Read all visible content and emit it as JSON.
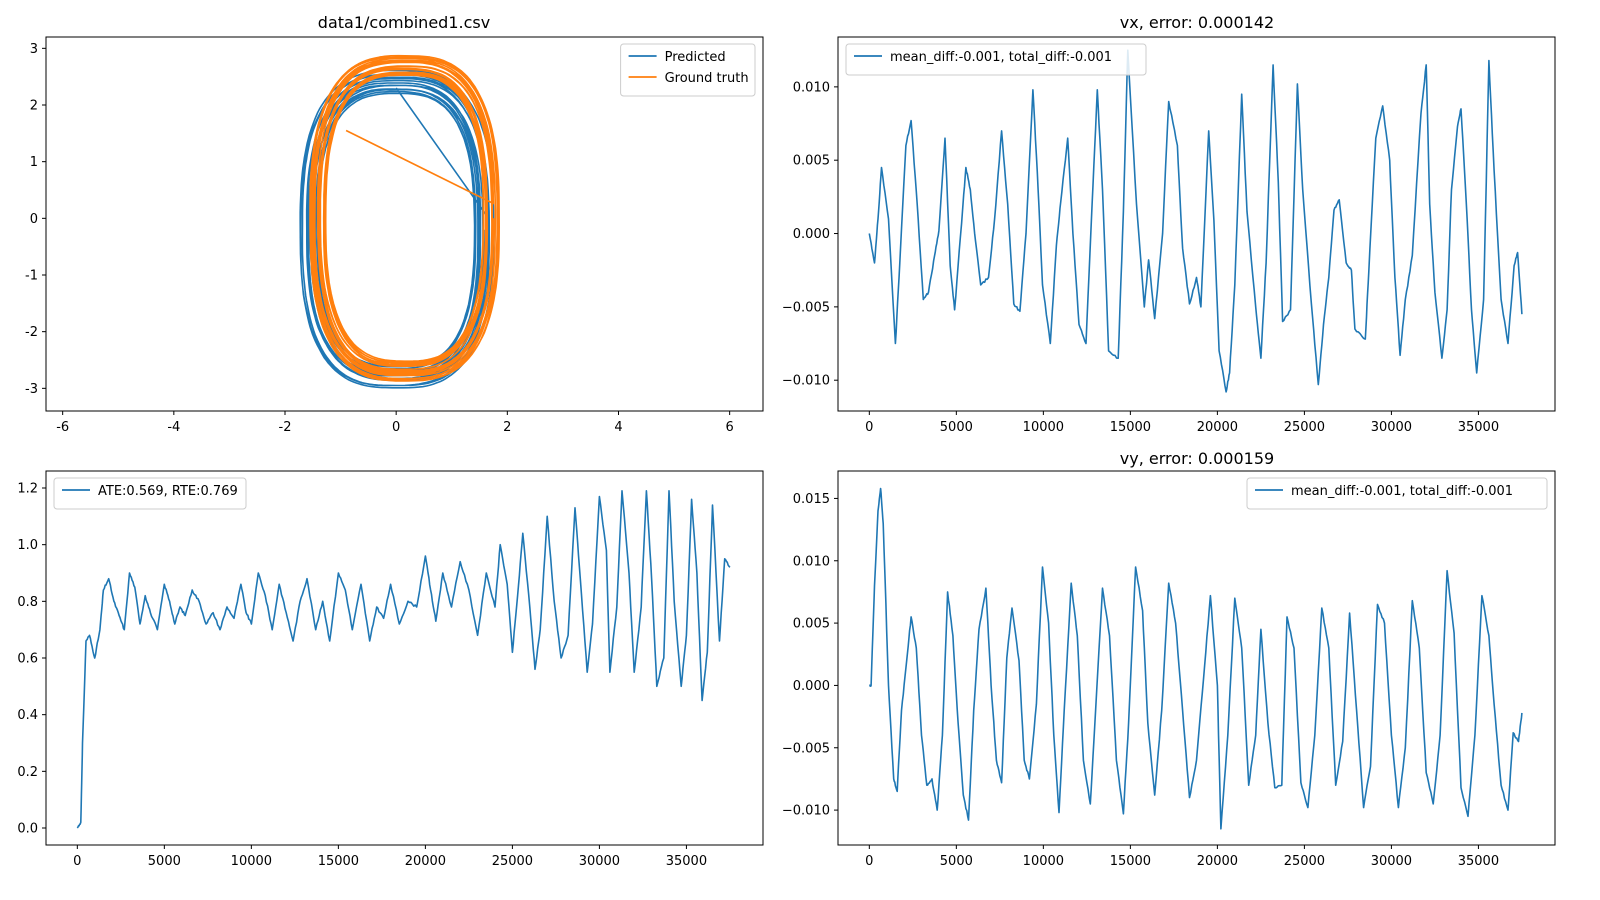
{
  "figure": {
    "background": "#ffffff"
  },
  "chart_data": [
    {
      "id": "traj",
      "type": "line",
      "title": "data1/combined1.csv",
      "xlim": [
        -6.3,
        6.6
      ],
      "ylim": [
        -3.4,
        3.2
      ],
      "xticks": [
        -6,
        -4,
        -2,
        0,
        2,
        4,
        6
      ],
      "yticks": [
        -3,
        -2,
        -1,
        0,
        1,
        2,
        3
      ],
      "legend": {
        "position": "upper right",
        "entries": [
          {
            "label": "Predicted",
            "color": "#1f77b4"
          },
          {
            "label": "Ground truth",
            "color": "#ff7f0e"
          }
        ]
      },
      "series": [
        {
          "name": "Predicted",
          "color": "#1f77b4",
          "shape": "loop",
          "cx": 0.0,
          "cy": -0.2,
          "rx": 1.65,
          "ry": 2.7,
          "loops": 14,
          "start": [
            0.0,
            2.3
          ]
        },
        {
          "name": "Ground truth",
          "color": "#ff7f0e",
          "shape": "loop",
          "cx": 0.15,
          "cy": 0.0,
          "rx": 1.6,
          "ry": 2.75,
          "loops": 18,
          "start": [
            -0.9,
            1.55
          ]
        }
      ]
    },
    {
      "id": "vx",
      "type": "line",
      "title": "vx, error: 0.000142",
      "xlim": [
        -1800,
        39400
      ],
      "ylim": [
        -0.0121,
        0.0134
      ],
      "xticks": [
        0,
        5000,
        10000,
        15000,
        20000,
        25000,
        30000,
        35000
      ],
      "yticks": [
        -0.01,
        -0.005,
        0.0,
        0.005,
        0.01
      ],
      "ytick_labels": [
        "−0.010",
        "−0.005",
        "0.000",
        "0.005",
        "0.010"
      ],
      "legend": {
        "position": "upper left",
        "entries": [
          {
            "label": "mean_diff:-0.001, total_diff:-0.001",
            "color": "#1f77b4"
          }
        ]
      },
      "series": [
        {
          "name": "mean_diff:-0.001, total_diff:-0.001",
          "color": "#1f77b4",
          "x": [
            0,
            300,
            500,
            700,
            1100,
            1500,
            1750,
            2100,
            2400,
            2750,
            3100,
            3400,
            3750,
            4000,
            4350,
            4650,
            4900,
            5300,
            5550,
            5800,
            6100,
            6400,
            6850,
            7200,
            7600,
            7950,
            8300,
            8650,
            9000,
            9400,
            9700,
            9950,
            10400,
            10750,
            11000,
            11400,
            11700,
            12050,
            12450,
            12800,
            13100,
            13400,
            13750,
            14300,
            14600,
            14850,
            15350,
            15800,
            16050,
            16400,
            16850,
            17200,
            17700,
            18000,
            18400,
            18800,
            19050,
            19500,
            19800,
            20100,
            20500,
            20700,
            21000,
            21400,
            21700,
            22200,
            22500,
            22800,
            23200,
            23500,
            23750,
            24200,
            24600,
            24900,
            25400,
            25800,
            26100,
            26400,
            26700,
            27000,
            27400,
            27700,
            27900,
            28500,
            28700,
            29100,
            29500,
            29900,
            30200,
            30500,
            30800,
            31200,
            31700,
            32000,
            32200,
            32500,
            32900,
            33200,
            33450,
            33800,
            34000,
            34300,
            34600,
            34900,
            35300,
            35600,
            35900,
            36300,
            36700,
            37050,
            37250,
            37500
          ],
          "y": [
            0.0,
            -0.002,
            0.001,
            0.0045,
            0.001,
            -0.0075,
            -0.002,
            0.006,
            0.0077,
            0.002,
            -0.0045,
            -0.004,
            -0.0015,
            0.0002,
            0.0065,
            -0.0022,
            -0.0052,
            0.0007,
            0.0045,
            0.003,
            -0.0005,
            -0.0035,
            -0.003,
            0.001,
            0.007,
            0.002,
            -0.0048,
            -0.0053,
            0.0,
            0.0098,
            0.003,
            -0.0035,
            -0.0075,
            -0.0008,
            0.0022,
            0.0065,
            0.0,
            -0.0062,
            -0.0075,
            0.002,
            0.0098,
            0.003,
            -0.008,
            -0.0085,
            0.0015,
            0.0125,
            0.002,
            -0.005,
            -0.0018,
            -0.0058,
            0.0,
            0.009,
            0.006,
            -0.001,
            -0.0048,
            -0.003,
            -0.005,
            0.007,
            0.0009,
            -0.008,
            -0.0108,
            -0.0095,
            -0.0035,
            0.0095,
            0.0015,
            -0.005,
            -0.0085,
            -0.002,
            0.0115,
            0.0035,
            -0.006,
            -0.0052,
            0.0102,
            0.003,
            -0.0048,
            -0.0103,
            -0.0062,
            -0.003,
            0.0016,
            0.0023,
            -0.002,
            -0.0025,
            -0.0065,
            -0.0072,
            -0.0026,
            0.0065,
            0.0087,
            0.005,
            -0.003,
            -0.0083,
            -0.0045,
            -0.0015,
            0.0082,
            0.0115,
            0.002,
            -0.004,
            -0.0085,
            -0.0052,
            0.003,
            0.0073,
            0.0085,
            0.0022,
            -0.0052,
            -0.0095,
            -0.0045,
            0.0118,
            0.0043,
            -0.0045,
            -0.0075,
            -0.0022,
            -0.0013,
            -0.0055
          ]
        }
      ]
    },
    {
      "id": "ate",
      "type": "line",
      "title": "",
      "xlim": [
        -1800,
        39400
      ],
      "ylim": [
        -0.06,
        1.26
      ],
      "xticks": [
        0,
        5000,
        10000,
        15000,
        20000,
        25000,
        30000,
        35000
      ],
      "yticks": [
        0.0,
        0.2,
        0.4,
        0.6,
        0.8,
        1.0,
        1.2
      ],
      "ytick_labels": [
        "0.0",
        "0.2",
        "0.4",
        "0.6",
        "0.8",
        "1.0",
        "1.2"
      ],
      "legend": {
        "position": "upper left",
        "entries": [
          {
            "label": "ATE:0.569, RTE:0.769",
            "color": "#1f77b4"
          }
        ]
      },
      "series": [
        {
          "name": "ATE:0.569, RTE:0.769",
          "color": "#1f77b4",
          "x": [
            0,
            200,
            300,
            500,
            700,
            1000,
            1300,
            1500,
            1800,
            2100,
            2400,
            2700,
            3000,
            3300,
            3600,
            3900,
            4200,
            4600,
            5000,
            5300,
            5600,
            5900,
            6200,
            6600,
            7000,
            7400,
            7800,
            8200,
            8600,
            9000,
            9400,
            9700,
            10000,
            10400,
            10800,
            11200,
            11600,
            12000,
            12400,
            12800,
            13200,
            13700,
            14100,
            14500,
            15000,
            15400,
            15800,
            16300,
            16800,
            17200,
            17600,
            18000,
            18500,
            19000,
            19500,
            20000,
            20300,
            20600,
            21000,
            21500,
            22000,
            22500,
            23000,
            23500,
            24000,
            24300,
            24700,
            25000,
            25300,
            25600,
            26000,
            26300,
            26600,
            27000,
            27400,
            27800,
            28200,
            28600,
            28900,
            29300,
            29600,
            30000,
            30400,
            30600,
            31000,
            31300,
            31700,
            32000,
            32400,
            32700,
            33000,
            33300,
            33700,
            34000,
            34300,
            34700,
            35000,
            35300,
            35600,
            35900,
            36200,
            36500,
            36900,
            37200,
            37500
          ],
          "y": [
            0.0,
            0.02,
            0.3,
            0.66,
            0.68,
            0.6,
            0.7,
            0.84,
            0.88,
            0.8,
            0.75,
            0.7,
            0.9,
            0.85,
            0.72,
            0.82,
            0.76,
            0.7,
            0.86,
            0.8,
            0.72,
            0.78,
            0.75,
            0.84,
            0.8,
            0.72,
            0.76,
            0.7,
            0.78,
            0.74,
            0.86,
            0.76,
            0.72,
            0.9,
            0.82,
            0.7,
            0.86,
            0.76,
            0.66,
            0.8,
            0.88,
            0.7,
            0.8,
            0.66,
            0.9,
            0.84,
            0.7,
            0.86,
            0.66,
            0.78,
            0.74,
            0.86,
            0.72,
            0.8,
            0.78,
            0.96,
            0.84,
            0.73,
            0.9,
            0.78,
            0.94,
            0.84,
            0.68,
            0.9,
            0.78,
            1.0,
            0.86,
            0.62,
            0.82,
            1.04,
            0.78,
            0.56,
            0.7,
            1.1,
            0.8,
            0.6,
            0.68,
            1.13,
            0.88,
            0.55,
            0.72,
            1.17,
            0.98,
            0.55,
            0.78,
            1.19,
            0.9,
            0.55,
            0.78,
            1.19,
            0.88,
            0.5,
            0.6,
            1.19,
            0.8,
            0.5,
            0.68,
            1.16,
            0.9,
            0.45,
            0.62,
            1.14,
            0.66,
            0.95,
            0.92
          ]
        }
      ]
    },
    {
      "id": "vy",
      "type": "line",
      "title": "vy, error: 0.000159",
      "xlim": [
        -1800,
        39400
      ],
      "ylim": [
        -0.0128,
        0.0172
      ],
      "xticks": [
        0,
        5000,
        10000,
        15000,
        20000,
        25000,
        30000,
        35000
      ],
      "yticks": [
        -0.01,
        -0.005,
        0.0,
        0.005,
        0.01,
        0.015
      ],
      "ytick_labels": [
        "−0.010",
        "−0.005",
        "0.000",
        "0.005",
        "0.010",
        "0.015"
      ],
      "legend": {
        "position": "upper right",
        "entries": [
          {
            "label": "mean_diff:-0.001, total_diff:-0.001",
            "color": "#1f77b4"
          }
        ]
      },
      "series": [
        {
          "name": "mean_diff:-0.001, total_diff:-0.001",
          "color": "#1f77b4",
          "x": [
            0,
            100,
            300,
            500,
            650,
            800,
            1100,
            1400,
            1600,
            1850,
            2150,
            2400,
            2700,
            3000,
            3300,
            3600,
            3900,
            4200,
            4500,
            4800,
            5100,
            5400,
            5700,
            6000,
            6300,
            6700,
            7000,
            7300,
            7600,
            7900,
            8200,
            8600,
            8900,
            9200,
            9600,
            9950,
            10300,
            10600,
            10900,
            11200,
            11600,
            11950,
            12300,
            12700,
            13000,
            13400,
            13800,
            14200,
            14600,
            14900,
            15300,
            15700,
            16000,
            16400,
            16800,
            17200,
            17600,
            18000,
            18400,
            18800,
            19200,
            19600,
            20000,
            20200,
            20600,
            21000,
            21400,
            21800,
            22200,
            22500,
            22900,
            23300,
            23700,
            24000,
            24400,
            24800,
            25200,
            25600,
            26000,
            26400,
            26800,
            27200,
            27600,
            28000,
            28400,
            28800,
            29200,
            29600,
            30000,
            30400,
            30800,
            31200,
            31600,
            32000,
            32400,
            32800,
            33200,
            33600,
            34000,
            34400,
            34800,
            35200,
            35600,
            35900,
            36300,
            36700,
            37000,
            37300,
            37500
          ],
          "y": [
            0.0,
            0.0,
            0.008,
            0.014,
            0.0158,
            0.013,
            0.0,
            -0.0075,
            -0.0085,
            -0.002,
            0.002,
            0.0055,
            0.003,
            -0.004,
            -0.008,
            -0.0075,
            -0.01,
            -0.004,
            0.0075,
            0.004,
            -0.003,
            -0.0088,
            -0.0108,
            -0.002,
            0.0045,
            0.0078,
            0.0,
            -0.006,
            -0.0078,
            0.0022,
            0.0062,
            0.002,
            -0.006,
            -0.0075,
            -0.0015,
            0.0095,
            0.005,
            -0.004,
            -0.0102,
            -0.002,
            0.0082,
            0.004,
            -0.006,
            -0.0095,
            -0.002,
            0.0078,
            0.004,
            -0.006,
            -0.0103,
            -0.003,
            0.0095,
            0.006,
            -0.003,
            -0.0088,
            -0.002,
            0.0082,
            0.005,
            -0.002,
            -0.009,
            -0.006,
            0.0005,
            0.0072,
            0.0,
            -0.0115,
            -0.004,
            0.007,
            0.003,
            -0.008,
            -0.004,
            0.0045,
            -0.003,
            -0.0082,
            -0.008,
            0.0055,
            0.003,
            -0.0078,
            -0.0098,
            -0.004,
            0.0062,
            0.003,
            -0.008,
            -0.0045,
            0.0058,
            -0.002,
            -0.0098,
            -0.0065,
            0.0065,
            0.005,
            -0.004,
            -0.0098,
            -0.005,
            0.0068,
            0.003,
            -0.007,
            -0.0095,
            -0.004,
            0.0092,
            0.0042,
            -0.0082,
            -0.0105,
            -0.004,
            0.0072,
            0.004,
            -0.0015,
            -0.008,
            -0.01,
            -0.0038,
            -0.0045,
            -0.0022
          ]
        }
      ]
    }
  ]
}
